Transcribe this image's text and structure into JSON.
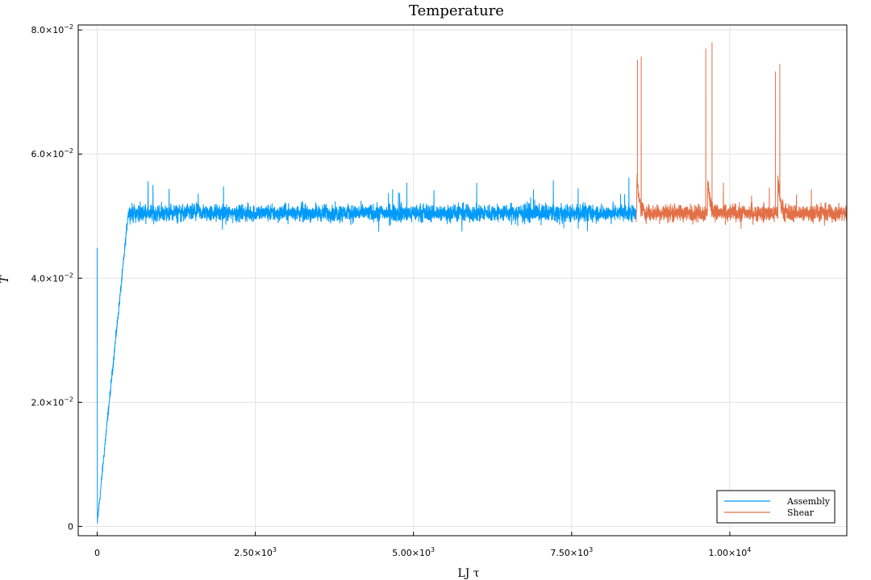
{
  "chart_data": {
    "type": "line",
    "title": "Temperature",
    "xlabel": "LJ τ",
    "ylabel": "T",
    "xlim": [
      -300,
      11850
    ],
    "ylim": [
      -0.0015,
      0.0808
    ],
    "grid": true,
    "legend_position": "bottom-right",
    "x_ticks": [
      {
        "value": 0,
        "label": "0"
      },
      {
        "value": 2500,
        "label": "2.50×10",
        "exp": "3"
      },
      {
        "value": 5000,
        "label": "5.00×10",
        "exp": "3"
      },
      {
        "value": 7500,
        "label": "7.50×10",
        "exp": "3"
      },
      {
        "value": 10000,
        "label": "1.00×10",
        "exp": "4"
      }
    ],
    "y_ticks": [
      {
        "value": 0,
        "label": "0"
      },
      {
        "value": 0.02,
        "label": "2.0×10",
        "exp": "−2"
      },
      {
        "value": 0.04,
        "label": "4.0×10",
        "exp": "−2"
      },
      {
        "value": 0.06,
        "label": "6.0×10",
        "exp": "−2"
      },
      {
        "value": 0.08,
        "label": "8.0×10",
        "exp": "−2"
      }
    ],
    "series": [
      {
        "name": "Assembly",
        "color": "#009af9",
        "x_range": [
          0,
          8520
        ],
        "plateau_mean": 0.0505,
        "plateau_min": 0.0475,
        "plateau_max": 0.0565,
        "ramp": [
          [
            0,
            0.0449
          ],
          [
            3,
            0.0005
          ],
          [
            130,
            0.014
          ],
          [
            270,
            0.028
          ],
          [
            400,
            0.041
          ],
          [
            490,
            0.0505
          ]
        ]
      },
      {
        "name": "Shear",
        "color": "#e26f46",
        "x_range": [
          8520,
          11850
        ],
        "plateau_mean": 0.0505,
        "plateau_min": 0.0478,
        "plateau_max": 0.0568,
        "spikes": [
          [
            8540,
            0.0752
          ],
          [
            8600,
            0.0757
          ],
          [
            9620,
            0.077
          ],
          [
            9720,
            0.078
          ],
          [
            10720,
            0.0733
          ],
          [
            10790,
            0.0745
          ]
        ]
      }
    ]
  }
}
